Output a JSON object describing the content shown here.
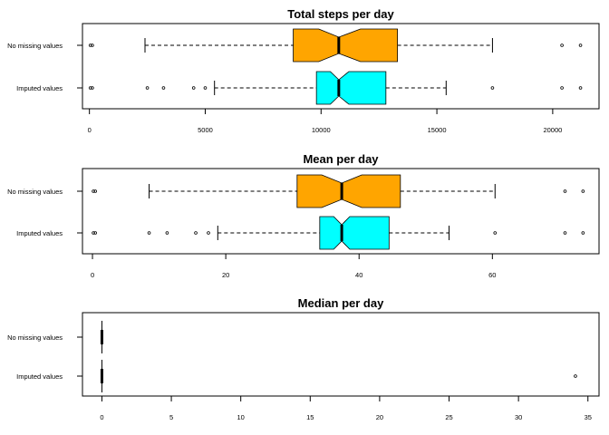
{
  "chart_data": [
    {
      "type": "boxplot",
      "title": "Total steps per day",
      "orientation": "horizontal",
      "notched": true,
      "xlim": [
        -300,
        22000
      ],
      "xticks": [
        0,
        5000,
        10000,
        15000,
        20000
      ],
      "xtick_labels": [
        "0",
        "5000",
        "10000",
        "15000",
        "20000"
      ],
      "categories": [
        "No missing values",
        "Imputed values"
      ],
      "boxes": [
        {
          "category": "No missing values",
          "color": "#FFA500",
          "whisker_low": 2400,
          "q1": 8800,
          "notch_low": 9900,
          "median": 10765,
          "notch_high": 11700,
          "q3": 13300,
          "whisker_high": 17400,
          "outliers": [
            41,
            126,
            20400,
            21200
          ]
        },
        {
          "category": "Imputed values",
          "color": "#00FFFF",
          "whisker_low": 5400,
          "q1": 9800,
          "notch_low": 10400,
          "median": 10766,
          "notch_high": 11200,
          "q3": 12800,
          "whisker_high": 15400,
          "outliers": [
            41,
            126,
            2500,
            3200,
            4500,
            5000,
            17400,
            20400,
            21200
          ]
        }
      ]
    },
    {
      "type": "boxplot",
      "title": "Mean per day",
      "orientation": "horizontal",
      "notched": true,
      "xlim": [
        -1.5,
        76
      ],
      "xticks": [
        0,
        20,
        40,
        60
      ],
      "xtick_labels": [
        "0",
        "20",
        "40",
        "60"
      ],
      "categories": [
        "No missing values",
        "Imputed values"
      ],
      "boxes": [
        {
          "category": "No missing values",
          "color": "#FFA500",
          "whisker_low": 8.5,
          "q1": 30.7,
          "notch_low": 34.4,
          "median": 37.4,
          "notch_high": 40.4,
          "q3": 46.2,
          "whisker_high": 60.4,
          "outliers": [
            0.14,
            0.43,
            70.9,
            73.6
          ]
        },
        {
          "category": "Imputed values",
          "color": "#00FFFF",
          "whisker_low": 18.8,
          "q1": 34.1,
          "notch_low": 36.2,
          "median": 37.4,
          "notch_high": 38.6,
          "q3": 44.5,
          "whisker_high": 53.5,
          "outliers": [
            0.14,
            0.43,
            8.5,
            11.2,
            15.5,
            17.4,
            60.4,
            70.9,
            73.6
          ]
        }
      ]
    },
    {
      "type": "boxplot",
      "title": "Median per day",
      "orientation": "horizontal",
      "notched": true,
      "xlim": [
        -1.4,
        35.8
      ],
      "xticks": [
        0,
        5,
        10,
        15,
        20,
        25,
        30,
        35
      ],
      "xtick_labels": [
        "0",
        "5",
        "10",
        "15",
        "20",
        "25",
        "30",
        "35"
      ],
      "categories": [
        "No missing values",
        "Imputed values"
      ],
      "boxes": [
        {
          "category": "No missing values",
          "color": "#FFA500",
          "whisker_low": 0,
          "q1": 0,
          "notch_low": 0,
          "median": 0,
          "notch_high": 0,
          "q3": 0,
          "whisker_high": 0,
          "outliers": []
        },
        {
          "category": "Imputed values",
          "color": "#00FFFF",
          "whisker_low": 0,
          "q1": 0,
          "notch_low": 0,
          "median": 0,
          "notch_high": 0,
          "q3": 0,
          "whisker_high": 0,
          "outliers": [
            34.1
          ]
        }
      ]
    }
  ]
}
